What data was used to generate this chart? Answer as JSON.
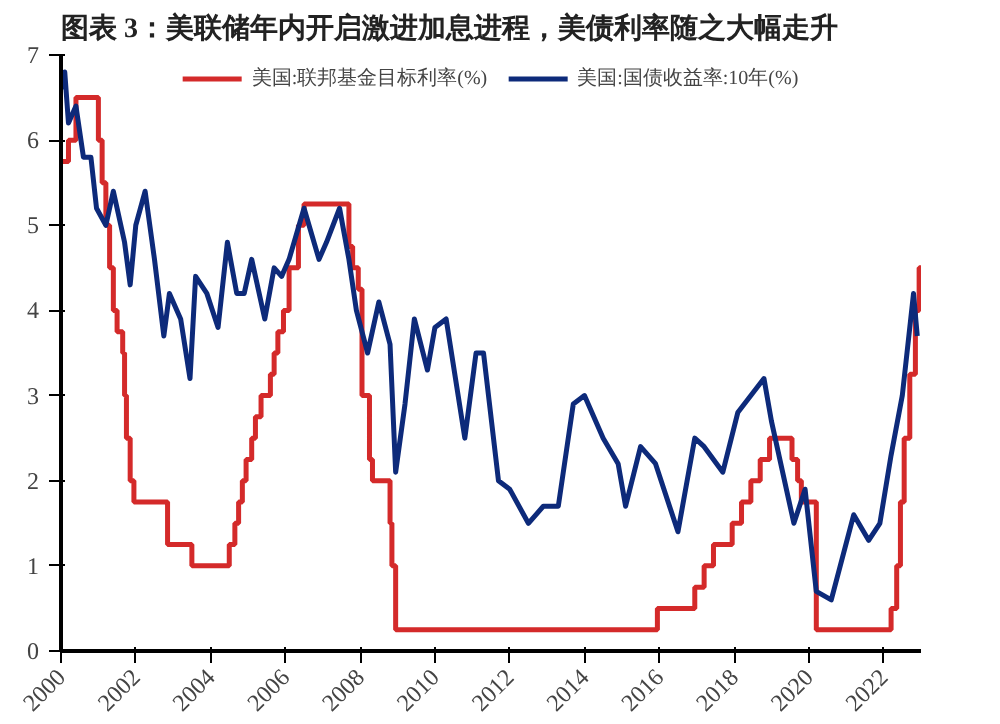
{
  "chart_data": {
    "type": "step",
    "title": "图表 3：美联储年内开启激进加息进程，美债利率随之大幅走升",
    "xlim": [
      2000,
      2023
    ],
    "xticks": [
      2000,
      2002,
      2004,
      2006,
      2008,
      2010,
      2012,
      2014,
      2016,
      2018,
      2020,
      2022
    ],
    "ylim": [
      0,
      7
    ],
    "yticks": [
      0,
      1,
      2,
      3,
      4,
      5,
      6,
      7
    ],
    "grid": false,
    "legend": "top",
    "series": [
      {
        "name": "美国:联邦基金目标利率(%)",
        "color": "#d42a2a",
        "x": [
          2000.0,
          2000.1,
          2000.2,
          2000.4,
          2001.0,
          2001.1,
          2001.2,
          2001.3,
          2001.4,
          2001.5,
          2001.65,
          2001.7,
          2001.75,
          2001.85,
          2001.95,
          2002.85,
          2003.5,
          2004.5,
          2004.65,
          2004.75,
          2004.85,
          2004.95,
          2005.1,
          2005.2,
          2005.35,
          2005.6,
          2005.7,
          2005.8,
          2005.95,
          2006.1,
          2006.35,
          2006.5,
          2007.7,
          2007.8,
          2007.95,
          2008.05,
          2008.25,
          2008.33,
          2008.8,
          2008.85,
          2008.95,
          2015.95,
          2016.95,
          2017.2,
          2017.45,
          2017.95,
          2018.2,
          2018.45,
          2018.7,
          2018.95,
          2019.55,
          2019.7,
          2019.8,
          2020.2,
          2022.2,
          2022.35,
          2022.45,
          2022.55,
          2022.7,
          2022.85,
          2022.95,
          2023.0
        ],
        "values": [
          5.75,
          5.75,
          6.0,
          6.5,
          6.0,
          5.5,
          5.0,
          4.5,
          4.0,
          3.75,
          3.5,
          3.0,
          2.5,
          2.0,
          1.75,
          1.25,
          1.0,
          1.25,
          1.5,
          1.75,
          2.0,
          2.25,
          2.5,
          2.75,
          3.0,
          3.25,
          3.5,
          3.75,
          4.0,
          4.5,
          5.0,
          5.25,
          4.75,
          4.5,
          4.25,
          3.0,
          2.25,
          2.0,
          1.5,
          1.0,
          0.25,
          0.5,
          0.75,
          1.0,
          1.25,
          1.5,
          1.75,
          2.0,
          2.25,
          2.5,
          2.25,
          2.0,
          1.75,
          0.25,
          0.5,
          1.0,
          1.75,
          2.5,
          3.25,
          4.0,
          4.5,
          4.5
        ]
      },
      {
        "name": "美国:国债收益率:10年(%)",
        "color": "#0d2a7a",
        "type": "line",
        "x": [
          2000.0,
          2000.1,
          2000.2,
          2000.4,
          2000.6,
          2000.8,
          2000.95,
          2001.2,
          2001.4,
          2001.7,
          2001.85,
          2002.0,
          2002.25,
          2002.5,
          2002.75,
          2002.9,
          2003.2,
          2003.45,
          2003.6,
          2003.9,
          2004.2,
          2004.45,
          2004.7,
          2004.9,
          2005.1,
          2005.45,
          2005.7,
          2005.9,
          2006.1,
          2006.5,
          2006.9,
          2007.1,
          2007.45,
          2007.7,
          2007.9,
          2008.2,
          2008.5,
          2008.8,
          2008.95,
          2009.2,
          2009.45,
          2009.8,
          2010.0,
          2010.3,
          2010.8,
          2011.1,
          2011.3,
          2011.7,
          2012.0,
          2012.5,
          2012.9,
          2013.3,
          2013.7,
          2014.0,
          2014.5,
          2014.9,
          2015.1,
          2015.5,
          2015.9,
          2016.5,
          2016.95,
          2017.2,
          2017.7,
          2018.1,
          2018.8,
          2019.0,
          2019.6,
          2019.9,
          2020.2,
          2020.6,
          2021.2,
          2021.6,
          2021.9,
          2022.2,
          2022.5,
          2022.8,
          2022.9
        ],
        "values": [
          6.6,
          6.8,
          6.2,
          6.4,
          5.8,
          5.8,
          5.2,
          5.0,
          5.4,
          4.8,
          4.3,
          5.0,
          5.4,
          4.6,
          3.7,
          4.2,
          3.9,
          3.2,
          4.4,
          4.2,
          3.8,
          4.8,
          4.2,
          4.2,
          4.6,
          3.9,
          4.5,
          4.4,
          4.6,
          5.2,
          4.6,
          4.8,
          5.2,
          4.6,
          4.0,
          3.5,
          4.1,
          3.6,
          2.1,
          2.9,
          3.9,
          3.3,
          3.8,
          3.9,
          2.5,
          3.5,
          3.5,
          2.0,
          1.9,
          1.5,
          1.7,
          1.7,
          2.9,
          3.0,
          2.5,
          2.2,
          1.7,
          2.4,
          2.2,
          1.4,
          2.5,
          2.4,
          2.1,
          2.8,
          3.2,
          2.7,
          1.5,
          1.9,
          0.7,
          0.6,
          1.6,
          1.3,
          1.5,
          2.3,
          3.0,
          4.2,
          3.7
        ]
      }
    ]
  }
}
